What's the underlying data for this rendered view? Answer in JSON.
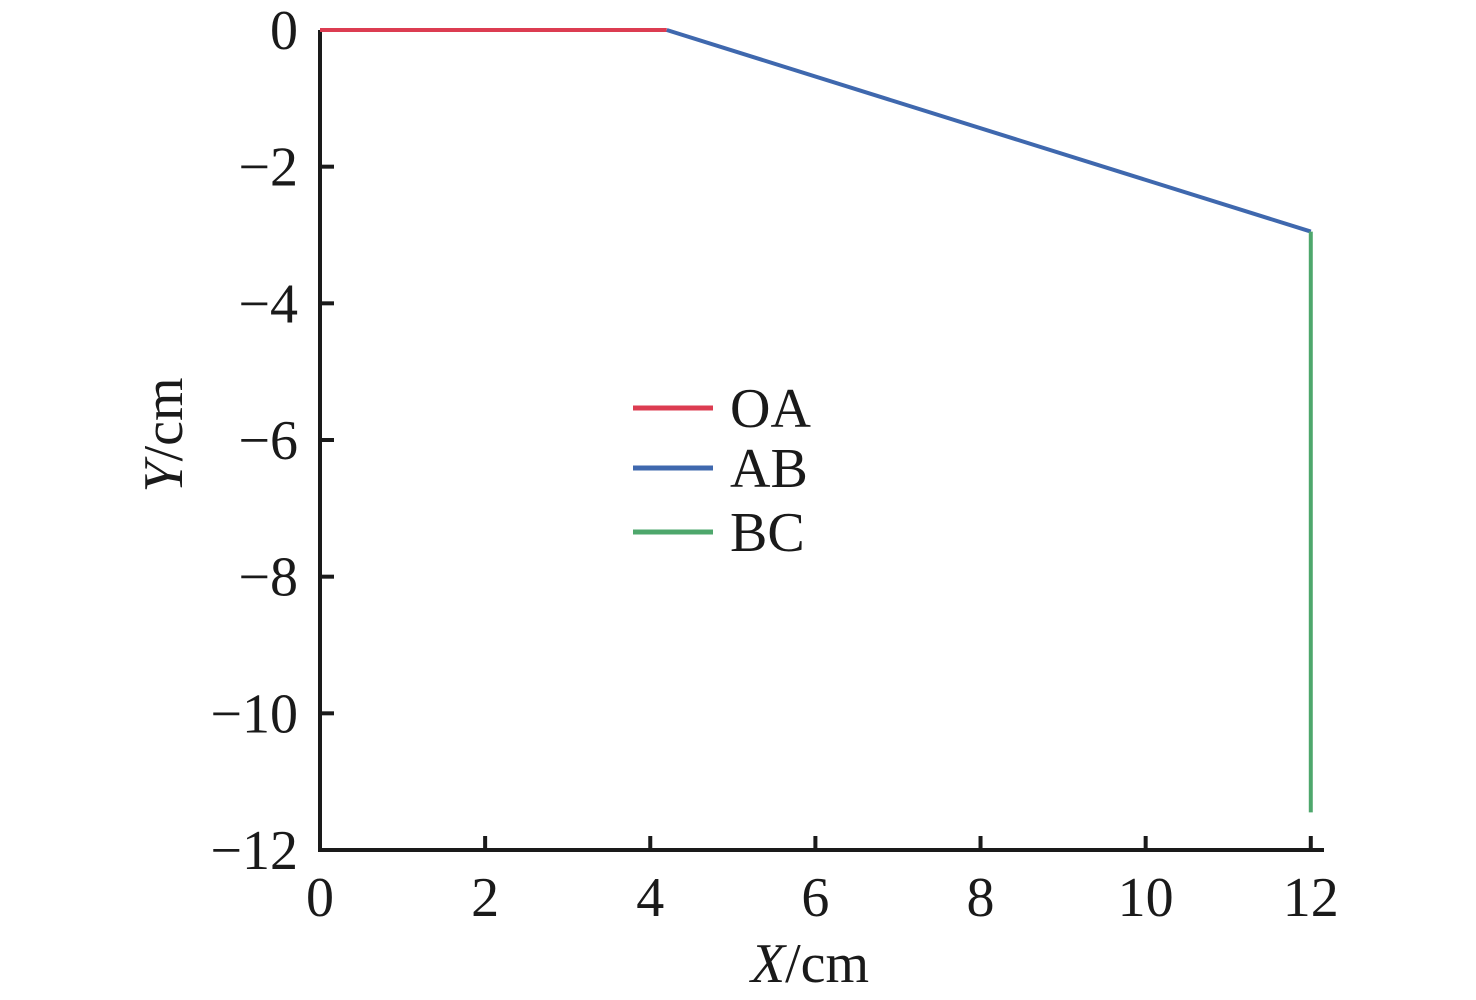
{
  "chart_data": {
    "type": "line",
    "title": "",
    "xlabel": {
      "variable": "X",
      "unit": "/cm"
    },
    "ylabel": {
      "variable": "Y",
      "unit": "/cm"
    },
    "xlim": [
      0,
      12.16
    ],
    "ylim": [
      -12,
      0
    ],
    "grid": false,
    "axis_color": "#1a1a1a",
    "background_color": "#ffffff",
    "x_ticks": [
      {
        "value": 0,
        "label": "0"
      },
      {
        "value": 2,
        "label": "2"
      },
      {
        "value": 4,
        "label": "4"
      },
      {
        "value": 6,
        "label": "6"
      },
      {
        "value": 8,
        "label": "8"
      },
      {
        "value": 10,
        "label": "10"
      },
      {
        "value": 12,
        "label": "12"
      }
    ],
    "y_ticks": [
      {
        "value": 0,
        "label": "0"
      },
      {
        "value": -2,
        "label": "−2"
      },
      {
        "value": -4,
        "label": "−4"
      },
      {
        "value": -6,
        "label": "−6"
      },
      {
        "value": -8,
        "label": "−8"
      },
      {
        "value": -10,
        "label": "−10"
      },
      {
        "value": -12,
        "label": "−12"
      }
    ],
    "series": [
      {
        "name": "OA",
        "color": "#dc3c51",
        "points": [
          [
            0,
            0
          ],
          [
            4.2,
            0
          ]
        ]
      },
      {
        "name": "AB",
        "color": "#3f68ae",
        "points": [
          [
            4.2,
            0
          ],
          [
            12.0,
            -2.95
          ]
        ]
      },
      {
        "name": "BC",
        "color": "#4ea76c",
        "points": [
          [
            12.0,
            -2.95
          ],
          [
            12.0,
            -11.45
          ]
        ]
      }
    ],
    "legend": {
      "frame": false,
      "location": "center-left inside plot"
    }
  }
}
